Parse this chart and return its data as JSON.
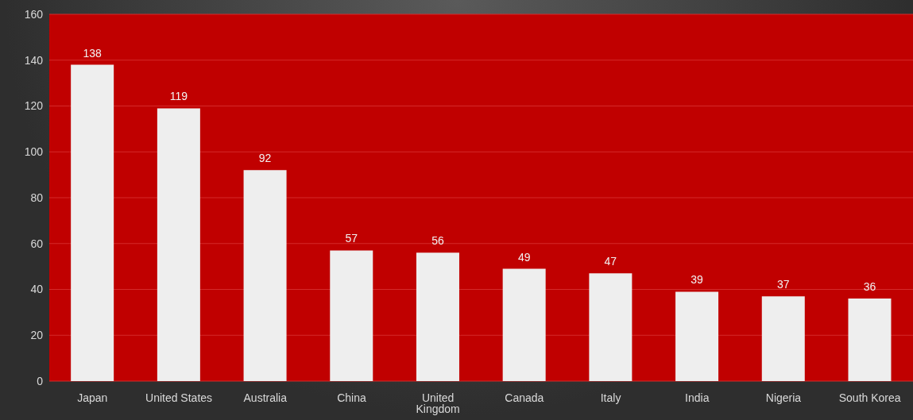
{
  "chart_data": {
    "type": "bar",
    "categories": [
      "Japan",
      "United States",
      "Australia",
      "China",
      "United Kingdom",
      "Canada",
      "Italy",
      "India",
      "Nigeria",
      "South Korea"
    ],
    "values": [
      138,
      119,
      92,
      57,
      56,
      49,
      47,
      39,
      37,
      36
    ],
    "color": "#eeeeee",
    "ylim": [
      0,
      160
    ],
    "yticks": [
      0,
      20,
      40,
      60,
      80,
      100,
      120,
      140,
      160
    ],
    "grid": "y",
    "data_labels": true
  }
}
